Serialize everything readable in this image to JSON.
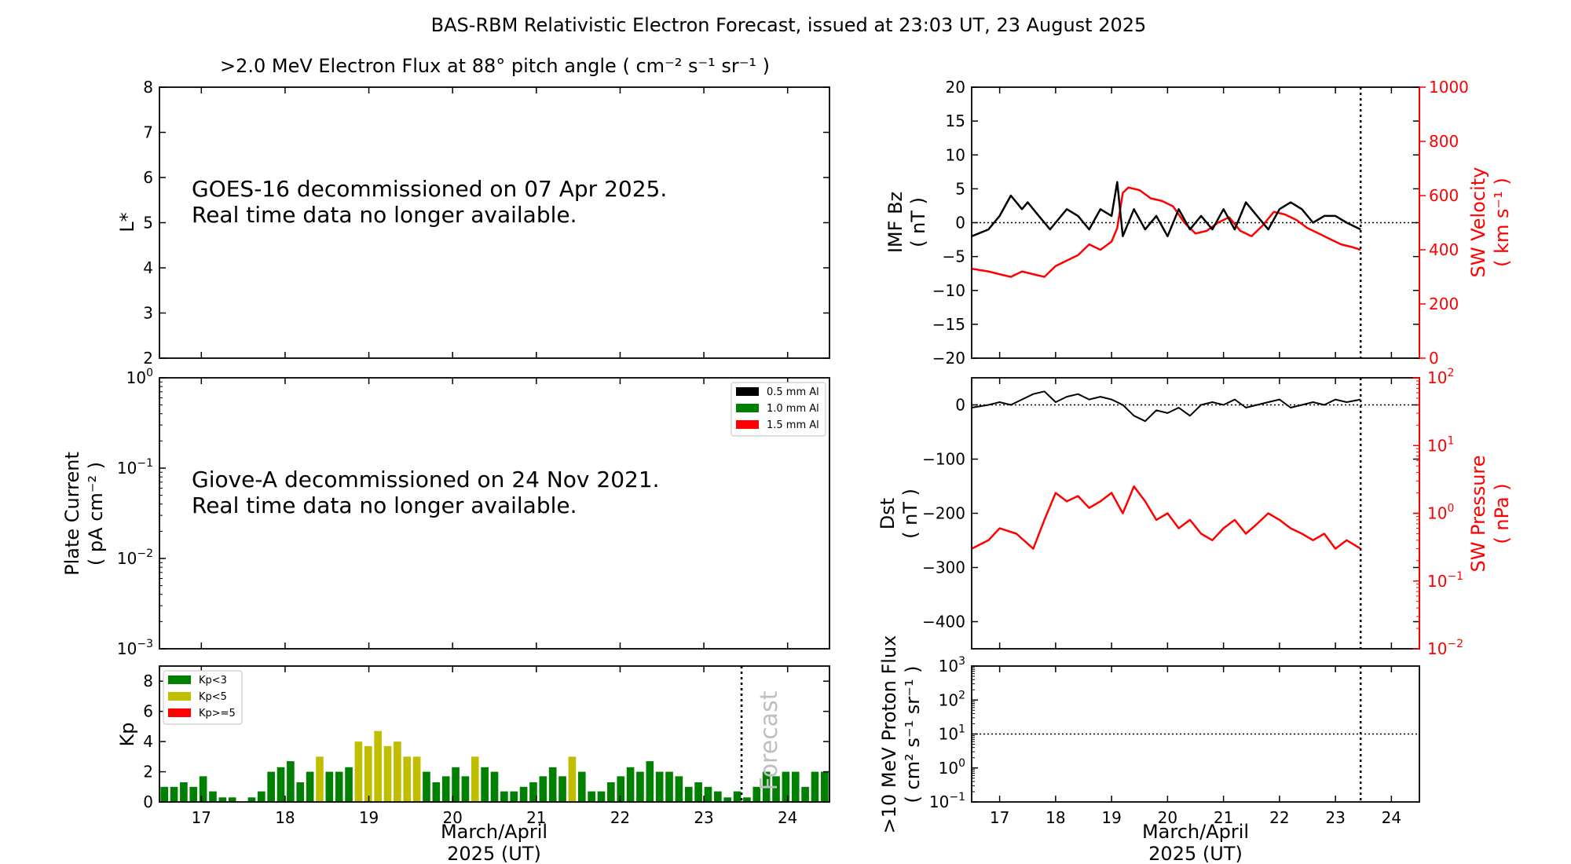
{
  "figure": {
    "title": "BAS-RBM Relativistic Electron Forecast, issued at 23:03 UT, 23 August 2025"
  },
  "colors": {
    "black": "#000000",
    "red": "#ff0000",
    "green": "#008000",
    "olive": "#bfbf00",
    "forecast_text": "#bfbfbf"
  },
  "chart_data": [
    {
      "id": "flux",
      "type": "heatmap",
      "title": ">2.0 MeV Electron Flux at 88° pitch angle ( cm⁻² s⁻¹ sr⁻¹ )",
      "ylabel": "L*",
      "ylim": [
        2,
        8
      ],
      "yticks": [
        "2",
        "3",
        "4",
        "5",
        "6",
        "7",
        "8"
      ],
      "message": [
        "GOES-16 decommissioned on 07 Apr 2025.",
        "Real time data no longer available."
      ]
    },
    {
      "id": "plate",
      "type": "line",
      "ylabel": [
        "Plate Current",
        "( pA cm⁻² )"
      ],
      "yscale": "log",
      "ylim": [
        0.001,
        1
      ],
      "yticks": [
        {
          "base": "10",
          "exp": "−3"
        },
        {
          "base": "10",
          "exp": "−2"
        },
        {
          "base": "10",
          "exp": "−1"
        },
        {
          "base": "10",
          "exp": "0"
        }
      ],
      "legend_position": "top-right",
      "series": [
        {
          "name": "0.5 mm Al",
          "color": "#000000"
        },
        {
          "name": "1.0 mm Al",
          "color": "#008000"
        },
        {
          "name": "1.5 mm Al",
          "color": "#ff0000"
        }
      ],
      "message": [
        "Giove-A decommissioned on 24 Nov 2021.",
        "Real time data no longer available."
      ]
    },
    {
      "id": "kp",
      "type": "bar",
      "ylabel": "Kp",
      "ylim": [
        0,
        9
      ],
      "yticks": [
        "0",
        "2",
        "4",
        "6",
        "8"
      ],
      "x_range": [
        16.5,
        24.5
      ],
      "xticks": [
        "17",
        "18",
        "19",
        "20",
        "21",
        "22",
        "23",
        "24"
      ],
      "xlabel": [
        "March/April",
        "2025 (UT)"
      ],
      "forecast_start": 23.45,
      "forecast_label": "Forecast",
      "legend_position": "top-left",
      "legend": [
        {
          "name": "Kp<3",
          "color": "#008000"
        },
        {
          "name": "Kp<5",
          "color": "#bfbf00"
        },
        {
          "name": "Kp>=5",
          "color": "#ff0000"
        }
      ],
      "values": [
        1,
        1,
        1.3,
        1,
        1.7,
        0.7,
        0.3,
        0.3,
        0,
        0.3,
        0.7,
        2,
        2.3,
        2.7,
        1.3,
        2,
        3,
        2,
        2,
        2.3,
        4,
        3.7,
        4.7,
        3.7,
        4,
        3,
        3,
        2,
        1.3,
        1.7,
        2.3,
        1.7,
        3,
        2.3,
        2,
        0.7,
        0.7,
        1,
        1.3,
        1.7,
        2.3,
        1.7,
        3,
        2,
        0.7,
        0.7,
        1.3,
        1.7,
        2.3,
        2,
        2.7,
        2,
        2,
        1.7,
        1,
        1.3,
        1,
        0.7,
        0.3,
        0.7,
        0.3,
        1,
        2,
        1.7,
        2,
        2,
        1,
        2,
        2
      ]
    },
    {
      "id": "imf",
      "type": "line",
      "ylabel": [
        "IMF Bz",
        "( nT )"
      ],
      "ylim": [
        -20,
        20
      ],
      "yticks": [
        "−20",
        "−15",
        "−10",
        "−5",
        "0",
        "5",
        "10",
        "15",
        "20"
      ],
      "y2label": [
        "SW Velocity",
        "( km s⁻¹ )"
      ],
      "y2lim": [
        0,
        1000
      ],
      "y2ticks": [
        "0",
        "200",
        "400",
        "600",
        "800",
        "1000"
      ],
      "x_range": [
        16.5,
        24.5
      ],
      "now": 23.45,
      "series": [
        {
          "name": "",
          "axis": "left",
          "color": "#000000",
          "x": [
            16.5,
            16.8,
            17.0,
            17.2,
            17.4,
            17.5,
            17.7,
            17.9,
            18.0,
            18.2,
            18.4,
            18.6,
            18.8,
            19.0,
            19.1,
            19.2,
            19.4,
            19.6,
            19.8,
            20.0,
            20.2,
            20.4,
            20.6,
            20.8,
            21.0,
            21.2,
            21.4,
            21.6,
            21.8,
            22.0,
            22.2,
            22.4,
            22.6,
            22.8,
            23.0,
            23.2,
            23.45
          ],
          "y": [
            -2,
            -1,
            1,
            4,
            2,
            3,
            1,
            -1,
            0,
            2,
            1,
            -1,
            2,
            1,
            6,
            -2,
            2,
            -1,
            1,
            -2,
            2,
            -1,
            1,
            -1,
            2,
            -1,
            3,
            1,
            -1,
            2,
            3,
            2,
            0,
            1,
            1,
            0,
            -1
          ]
        },
        {
          "name": "",
          "axis": "right",
          "color": "#ff0000",
          "x": [
            16.5,
            16.8,
            17.0,
            17.2,
            17.4,
            17.6,
            17.8,
            18.0,
            18.2,
            18.4,
            18.6,
            18.8,
            19.0,
            19.1,
            19.2,
            19.3,
            19.5,
            19.7,
            19.9,
            20.1,
            20.3,
            20.5,
            20.7,
            20.9,
            21.1,
            21.3,
            21.5,
            21.7,
            21.9,
            22.1,
            22.3,
            22.5,
            22.7,
            22.9,
            23.1,
            23.3,
            23.45
          ],
          "y": [
            330,
            320,
            310,
            300,
            320,
            310,
            300,
            340,
            360,
            380,
            420,
            400,
            430,
            480,
            610,
            630,
            620,
            590,
            580,
            560,
            500,
            460,
            470,
            500,
            520,
            470,
            450,
            490,
            540,
            530,
            510,
            480,
            460,
            440,
            420,
            410,
            400
          ]
        }
      ]
    },
    {
      "id": "dst",
      "type": "line",
      "ylabel": [
        "Dst",
        "( nT )"
      ],
      "ylim": [
        -450,
        50
      ],
      "yticks": [
        "−400",
        "−300",
        "−200",
        "−100",
        "0"
      ],
      "y2label": [
        "SW Pressure",
        "( nPa )"
      ],
      "y2scale": "log",
      "y2lim": [
        0.01,
        100
      ],
      "y2ticks": [
        {
          "base": "10",
          "exp": "−2"
        },
        {
          "base": "10",
          "exp": "−1"
        },
        {
          "base": "10",
          "exp": "0"
        },
        {
          "base": "10",
          "exp": "1"
        },
        {
          "base": "10",
          "exp": "2"
        }
      ],
      "x_range": [
        16.5,
        24.5
      ],
      "now": 23.45,
      "series": [
        {
          "name": "",
          "axis": "left",
          "color": "#000000",
          "x": [
            16.5,
            16.8,
            17.0,
            17.2,
            17.4,
            17.6,
            17.8,
            18.0,
            18.2,
            18.4,
            18.6,
            18.8,
            19.0,
            19.2,
            19.4,
            19.6,
            19.8,
            20.0,
            20.2,
            20.4,
            20.6,
            20.8,
            21.0,
            21.2,
            21.4,
            21.6,
            21.8,
            22.0,
            22.2,
            22.4,
            22.6,
            22.8,
            23.0,
            23.2,
            23.45
          ],
          "y": [
            -5,
            0,
            5,
            0,
            10,
            20,
            25,
            5,
            15,
            20,
            10,
            15,
            10,
            0,
            -20,
            -30,
            -10,
            -15,
            -5,
            -20,
            0,
            5,
            0,
            10,
            -5,
            0,
            5,
            10,
            -5,
            0,
            5,
            0,
            10,
            5,
            10
          ]
        },
        {
          "name": "",
          "axis": "right",
          "color": "#ff0000",
          "x": [
            16.5,
            16.8,
            17.0,
            17.3,
            17.6,
            17.8,
            18.0,
            18.2,
            18.4,
            18.6,
            18.8,
            19.0,
            19.2,
            19.4,
            19.6,
            19.8,
            20.0,
            20.2,
            20.4,
            20.6,
            20.8,
            21.0,
            21.2,
            21.4,
            21.6,
            21.8,
            22.0,
            22.2,
            22.4,
            22.6,
            22.8,
            23.0,
            23.2,
            23.45
          ],
          "y": [
            0.3,
            0.4,
            0.6,
            0.5,
            0.3,
            0.8,
            2.0,
            1.5,
            1.8,
            1.2,
            1.5,
            2.0,
            1.0,
            2.5,
            1.5,
            0.8,
            1.0,
            0.6,
            0.8,
            0.5,
            0.4,
            0.6,
            0.8,
            0.5,
            0.7,
            1.0,
            0.8,
            0.6,
            0.5,
            0.4,
            0.5,
            0.3,
            0.4,
            0.3
          ]
        }
      ]
    },
    {
      "id": "proton",
      "type": "line",
      "ylabel": [
        ">10 MeV Proton Flux",
        "( cm² s⁻¹ sr⁻¹ )"
      ],
      "yscale": "log",
      "ylim": [
        0.1,
        1000
      ],
      "yticks": [
        {
          "base": "10",
          "exp": "−1"
        },
        {
          "base": "10",
          "exp": "0"
        },
        {
          "base": "10",
          "exp": "1"
        },
        {
          "base": "10",
          "exp": "2"
        },
        {
          "base": "10",
          "exp": "3"
        }
      ],
      "threshold": 10,
      "x_range": [
        16.5,
        24.5
      ],
      "xticks": [
        "17",
        "18",
        "19",
        "20",
        "21",
        "22",
        "23",
        "24"
      ],
      "xlabel": [
        "March/April",
        "2025 (UT)"
      ],
      "now": 23.45
    }
  ]
}
